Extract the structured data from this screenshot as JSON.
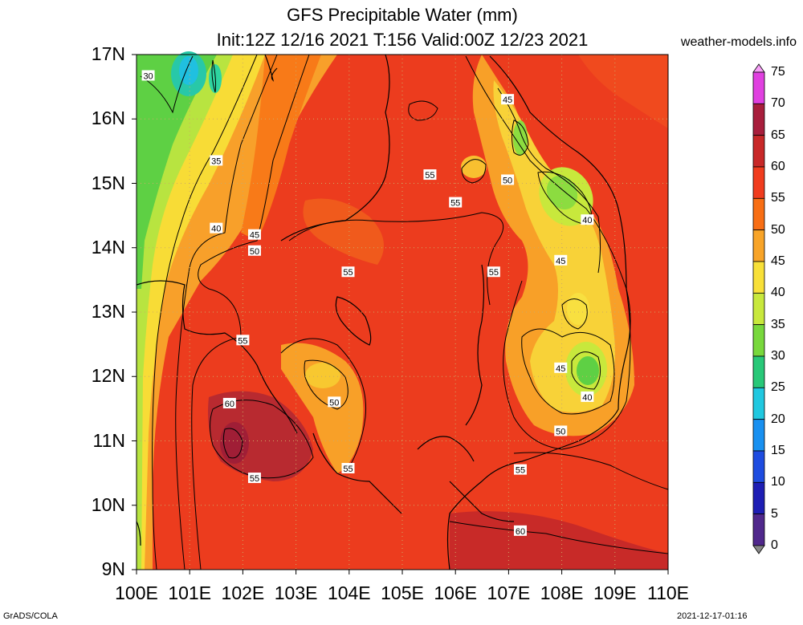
{
  "title_line1": "GFS Precipitable Water (mm)",
  "title_line2": "Init:12Z 12/16 2021 T:156 Valid:00Z 12/23 2021",
  "site": "weather-models.info",
  "footer_left": "GrADS/COLA",
  "footer_right": "2021-12-17-01:16",
  "lat_labels": [
    "17N",
    "16N",
    "15N",
    "14N",
    "13N",
    "12N",
    "11N",
    "10N",
    "9N"
  ],
  "lon_labels": [
    "100E",
    "101E",
    "102E",
    "103E",
    "104E",
    "105E",
    "106E",
    "107E",
    "108E",
    "109E",
    "110E"
  ],
  "colorbar": {
    "labels": [
      "75",
      "70",
      "65",
      "60",
      "55",
      "50",
      "45",
      "40",
      "35",
      "30",
      "25",
      "20",
      "15",
      "10",
      "5",
      "0"
    ],
    "colors": [
      "#f8a0f8",
      "#e040e0",
      "#a81e3c",
      "#c82828",
      "#f03c1e",
      "#f86e14",
      "#f8a428",
      "#f8e038",
      "#c8e83c",
      "#78d83c",
      "#28c878",
      "#20c8e0",
      "#1890f0",
      "#1e4ce0",
      "#1e1eb4",
      "#50288c",
      "#888888"
    ]
  },
  "contour_labels": [
    {
      "text": "30",
      "lon": 100.22,
      "lat": 16.67
    },
    {
      "text": "35",
      "lon": 101.5,
      "lat": 15.35
    },
    {
      "text": "40",
      "lon": 101.5,
      "lat": 14.3
    },
    {
      "text": "45",
      "lon": 102.22,
      "lat": 14.2
    },
    {
      "text": "50",
      "lon": 102.22,
      "lat": 13.95
    },
    {
      "text": "55",
      "lon": 105.52,
      "lat": 15.13
    },
    {
      "text": "55",
      "lon": 106.0,
      "lat": 14.7
    },
    {
      "text": "55",
      "lon": 103.98,
      "lat": 13.62
    },
    {
      "text": "55",
      "lon": 106.72,
      "lat": 13.62
    },
    {
      "text": "45",
      "lon": 106.98,
      "lat": 16.3
    },
    {
      "text": "50",
      "lon": 106.98,
      "lat": 15.05
    },
    {
      "text": "40",
      "lon": 108.48,
      "lat": 14.43
    },
    {
      "text": "45",
      "lon": 107.98,
      "lat": 13.8
    },
    {
      "text": "45",
      "lon": 107.98,
      "lat": 12.13
    },
    {
      "text": "40",
      "lon": 108.48,
      "lat": 11.68
    },
    {
      "text": "50",
      "lon": 107.98,
      "lat": 11.15
    },
    {
      "text": "55",
      "lon": 107.22,
      "lat": 10.55
    },
    {
      "text": "60",
      "lon": 107.22,
      "lat": 9.6
    },
    {
      "text": "55",
      "lon": 102.0,
      "lat": 12.56
    },
    {
      "text": "60",
      "lon": 101.75,
      "lat": 11.58
    },
    {
      "text": "55",
      "lon": 102.22,
      "lat": 10.42
    },
    {
      "text": "50",
      "lon": 103.72,
      "lat": 11.6
    },
    {
      "text": "55",
      "lon": 103.98,
      "lat": 10.57
    }
  ]
}
